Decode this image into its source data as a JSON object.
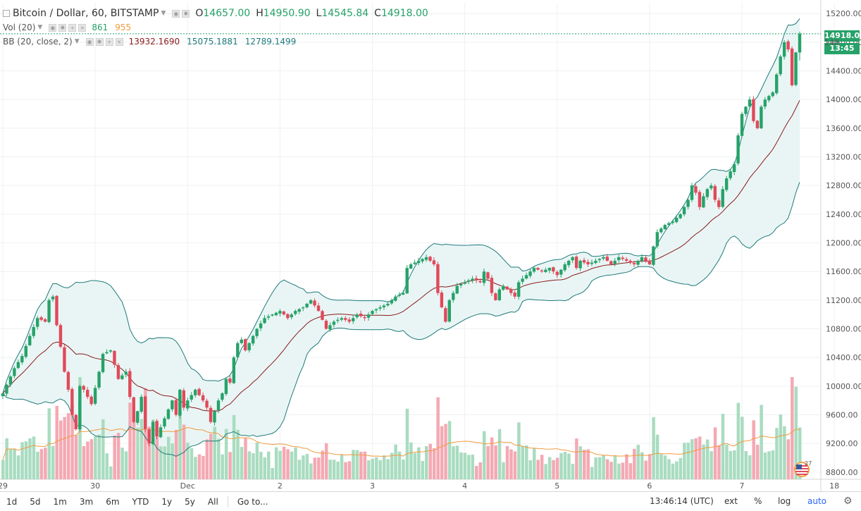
{
  "legend": {
    "symbol": "Bitcoin / Dollar, 60, BITSTAMP",
    "open_label": "O",
    "open": "14657.00",
    "high_label": "H",
    "high": "14950.90",
    "low_label": "L",
    "low": "14545.84",
    "close_label": "C",
    "close": "14918.00",
    "vol_label": "Vol (20)",
    "vol_value": "861",
    "vol_ma": "955",
    "bb_label": "BB (20, close, 2)",
    "bb_basis": "13932.1690",
    "bb_upper": "15075.1881",
    "bb_lower": "12789.1499"
  },
  "price_badge": "14918.00",
  "countdown_badge": "13:45",
  "price_axis_partial": "148",
  "chart_data": {
    "type": "candlestick",
    "title": "Bitcoin / Dollar, 60, BITSTAMP",
    "y_ticks": [
      8800,
      9200,
      9600,
      10000,
      10400,
      10800,
      11200,
      11600,
      12000,
      12400,
      12800,
      13200,
      13600,
      14000,
      14400,
      14800,
      15200
    ],
    "ylim": [
      8700,
      15350
    ],
    "x_labels": [
      {
        "label": "29",
        "hour": 0
      },
      {
        "label": "30",
        "hour": 24
      },
      {
        "label": "Dec",
        "hour": 48
      },
      {
        "label": "2",
        "hour": 72
      },
      {
        "label": "3",
        "hour": 96
      },
      {
        "label": "4",
        "hour": 120
      },
      {
        "label": "5",
        "hour": 144
      },
      {
        "label": "6",
        "hour": 168
      },
      {
        "label": "7",
        "hour": 192
      },
      {
        "label": "18",
        "hour": 216
      }
    ],
    "close_anchors": [
      [
        0,
        9900
      ],
      [
        1,
        10020
      ],
      [
        3,
        10250
      ],
      [
        5,
        10420
      ],
      [
        7,
        10700
      ],
      [
        9,
        10950
      ],
      [
        11,
        10900
      ],
      [
        12,
        11200
      ],
      [
        13,
        11250
      ],
      [
        14,
        10850
      ],
      [
        15,
        10550
      ],
      [
        16,
        10200
      ],
      [
        17,
        9950
      ],
      [
        18,
        9600
      ],
      [
        19,
        9400
      ],
      [
        20,
        10000
      ],
      [
        21,
        9950
      ],
      [
        23,
        9750
      ],
      [
        25,
        10200
      ],
      [
        26,
        10450
      ],
      [
        28,
        10500
      ],
      [
        29,
        10300
      ],
      [
        30,
        10100
      ],
      [
        32,
        10200
      ],
      [
        33,
        9850
      ],
      [
        34,
        9500
      ],
      [
        35,
        9650
      ],
      [
        36,
        9850
      ],
      [
        37,
        9400
      ],
      [
        38,
        9200
      ],
      [
        39,
        9500
      ],
      [
        40,
        9300
      ],
      [
        42,
        9550
      ],
      [
        44,
        9800
      ],
      [
        45,
        9600
      ],
      [
        46,
        9950
      ],
      [
        47,
        9700
      ],
      [
        48,
        9800
      ],
      [
        50,
        9950
      ],
      [
        52,
        9800
      ],
      [
        53,
        9700
      ],
      [
        54,
        9500
      ],
      [
        55,
        9650
      ],
      [
        56,
        9800
      ],
      [
        57,
        9900
      ],
      [
        58,
        10100
      ],
      [
        59,
        10050
      ],
      [
        60,
        10400
      ],
      [
        61,
        10600
      ],
      [
        62,
        10650
      ],
      [
        63,
        10500
      ],
      [
        65,
        10700
      ],
      [
        66,
        10800
      ],
      [
        68,
        10950
      ],
      [
        70,
        11000
      ],
      [
        72,
        11050
      ],
      [
        74,
        10950
      ],
      [
        76,
        11050
      ],
      [
        78,
        11100
      ],
      [
        80,
        11200
      ],
      [
        82,
        11050
      ],
      [
        84,
        10800
      ],
      [
        86,
        10900
      ],
      [
        88,
        10950
      ],
      [
        90,
        10900
      ],
      [
        92,
        11000
      ],
      [
        94,
        10950
      ],
      [
        96,
        11050
      ],
      [
        98,
        11100
      ],
      [
        100,
        11150
      ],
      [
        102,
        11250
      ],
      [
        104,
        11300
      ],
      [
        105,
        11650
      ],
      [
        106,
        11700
      ],
      [
        108,
        11750
      ],
      [
        110,
        11800
      ],
      [
        112,
        11700
      ],
      [
        113,
        11300
      ],
      [
        114,
        11100
      ],
      [
        115,
        10900
      ],
      [
        116,
        11200
      ],
      [
        117,
        11300
      ],
      [
        118,
        11400
      ],
      [
        120,
        11450
      ],
      [
        122,
        11500
      ],
      [
        124,
        11450
      ],
      [
        125,
        11600
      ],
      [
        126,
        11500
      ],
      [
        127,
        11300
      ],
      [
        128,
        11200
      ],
      [
        129,
        11350
      ],
      [
        130,
        11400
      ],
      [
        132,
        11300
      ],
      [
        133,
        11250
      ],
      [
        134,
        11450
      ],
      [
        136,
        11550
      ],
      [
        138,
        11650
      ],
      [
        140,
        11600
      ],
      [
        142,
        11650
      ],
      [
        144,
        11550
      ],
      [
        146,
        11700
      ],
      [
        148,
        11800
      ],
      [
        149,
        11650
      ],
      [
        150,
        11750
      ],
      [
        152,
        11700
      ],
      [
        154,
        11750
      ],
      [
        156,
        11800
      ],
      [
        158,
        11700
      ],
      [
        160,
        11800
      ],
      [
        162,
        11750
      ],
      [
        164,
        11700
      ],
      [
        166,
        11800
      ],
      [
        168,
        11700
      ],
      [
        169,
        11950
      ],
      [
        170,
        12150
      ],
      [
        172,
        12250
      ],
      [
        174,
        12300
      ],
      [
        176,
        12400
      ],
      [
        178,
        12600
      ],
      [
        179,
        12800
      ],
      [
        180,
        12700
      ],
      [
        181,
        12500
      ],
      [
        182,
        12650
      ],
      [
        183,
        12750
      ],
      [
        184,
        12800
      ],
      [
        185,
        12600
      ],
      [
        186,
        12500
      ],
      [
        187,
        12750
      ],
      [
        188,
        12900
      ],
      [
        189,
        13000
      ],
      [
        190,
        13100
      ],
      [
        191,
        13500
      ],
      [
        192,
        13800
      ],
      [
        193,
        13900
      ],
      [
        194,
        14000
      ],
      [
        195,
        13700
      ],
      [
        196,
        13600
      ],
      [
        197,
        13900
      ],
      [
        198,
        14000
      ],
      [
        199,
        14050
      ],
      [
        200,
        14100
      ],
      [
        201,
        14350
      ],
      [
        202,
        14600
      ],
      [
        203,
        14800
      ],
      [
        204,
        14700
      ],
      [
        205,
        14200
      ],
      [
        206,
        14657
      ],
      [
        207,
        14918
      ]
    ]
  },
  "bottom_bar": {
    "timeframes": [
      "1d",
      "5d",
      "1m",
      "3m",
      "6m",
      "YTD",
      "1y",
      "5y",
      "All"
    ],
    "goto": "Go to...",
    "time": "13:46:14 (UTC)",
    "ext": "ext",
    "percent": "%",
    "log": "log",
    "auto": "auto",
    "settings_icon": "gear-icon"
  },
  "colors": {
    "up": "#26a269",
    "down": "#e04a5a",
    "vol_up": "#a9dcc0",
    "vol_down": "#f4a9b3",
    "bb_band": "#1f7a7a",
    "bb_basis": "#8b1a1a",
    "vol_ma": "#f39a3c",
    "fill": "#e9f5f5",
    "grid": "#eef0f3"
  }
}
